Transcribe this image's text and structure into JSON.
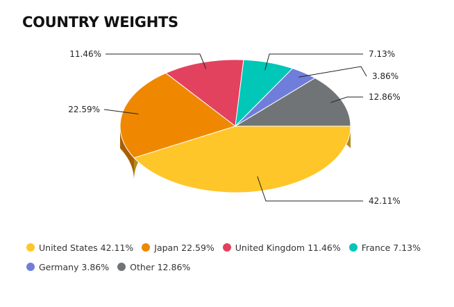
{
  "title": "COUNTRY WEIGHTS",
  "chart_data": {
    "type": "pie",
    "title": "COUNTRY WEIGHTS",
    "three_d": true,
    "legend_placement": "bottom",
    "slices": [
      {
        "name": "United States",
        "value": 42.11,
        "label": "42.11%",
        "legend": "United States 42.11%",
        "color": "#FFC629",
        "side_color": "#B38A1D"
      },
      {
        "name": "Japan",
        "value": 22.59,
        "label": "22.59%",
        "legend": "Japan 22.59%",
        "color": "#EF8800",
        "side_color": "#A85F00"
      },
      {
        "name": "United Kingdom",
        "value": 11.46,
        "label": "11.46%",
        "legend": "United Kingdom 11.46%",
        "color": "#E3425F",
        "side_color": "#9E2E43"
      },
      {
        "name": "France",
        "value": 7.13,
        "label": "7.13%",
        "legend": "France 7.13%",
        "color": "#00C7B7",
        "side_color": "#008B80"
      },
      {
        "name": "Germany",
        "value": 3.86,
        "label": "3.86%",
        "legend": "Germany 3.86%",
        "color": "#6F7EDB",
        "side_color": "#4E5899"
      },
      {
        "name": "Other",
        "value": 12.86,
        "label": "12.86%",
        "legend": "Other 12.86%",
        "color": "#707476",
        "side_color": "#4E5153"
      }
    ]
  }
}
